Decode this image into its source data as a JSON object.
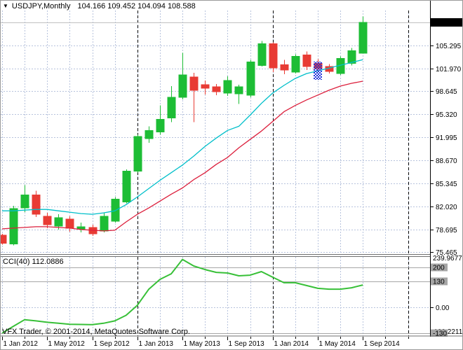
{
  "header": {
    "dropdown_icon": "▼",
    "symbol": "USDJPY,Monthly",
    "ohlc_text": "104.166 109.452 104.094 108.588"
  },
  "indicator": {
    "label_text": "CCI(40) 112.0886"
  },
  "footer": {
    "copyright": "VFX Trader, © 2001-2014, MetaQuotes Software Corp."
  },
  "colors": {
    "background": "#ffffff",
    "grid": "#b7c3dd",
    "year_line": "#000000",
    "bull": "#1dbd35",
    "bear": "#e83b34",
    "ma_fast": "#00bfca",
    "ma_slow": "#dc1f3c",
    "cci": "#38c038",
    "level_line": "#a6a6a6",
    "level_box_bg": "#a6a6a6",
    "level_box_fg": "#ffffff",
    "price_line": "#c0c0c0",
    "badge_bg": "#000000",
    "badge_fg": "#ffffff",
    "axis_border": "#000000",
    "separator": "#6f6f6f"
  },
  "price_axis": {
    "current": "108.588",
    "ticks": [
      105.295,
      101.97,
      98.645,
      95.32,
      91.995,
      88.67,
      85.345,
      82.02,
      78.695,
      75.465
    ]
  },
  "time_axis": {
    "labels": [
      {
        "m": 0,
        "text": "1 Jan 2012"
      },
      {
        "m": 4,
        "text": "1 May 2012"
      },
      {
        "m": 8,
        "text": "1 Sep 2012"
      },
      {
        "m": 12,
        "text": "1 Jan 2013"
      },
      {
        "m": 16,
        "text": "1 May 2013"
      },
      {
        "m": 20,
        "text": "1 Sep 2013"
      },
      {
        "m": 24,
        "text": "1 Jan 2014"
      },
      {
        "m": 28,
        "text": "1 May 2014"
      },
      {
        "m": 32,
        "text": "1 Sep 2014"
      }
    ]
  },
  "chart_data": {
    "type": "candlestick",
    "symbol": "USDJPY",
    "timeframe": "Monthly",
    "current_price": 108.588,
    "current_bar_ohlc": {
      "o": 104.166,
      "h": 109.452,
      "l": 104.094,
      "c": 108.588
    },
    "candles": [
      {
        "t": "Jan 2012",
        "o": 77.9,
        "h": 78.1,
        "l": 76.5,
        "c": 76.7
      },
      {
        "t": "Feb 2012",
        "o": 76.6,
        "h": 82.1,
        "l": 76.4,
        "c": 81.7
      },
      {
        "t": "Mar 2012",
        "o": 81.8,
        "h": 85.1,
        "l": 81.2,
        "c": 83.7
      },
      {
        "t": "Apr 2012",
        "o": 83.7,
        "h": 84.3,
        "l": 80.5,
        "c": 80.9
      },
      {
        "t": "May 2012",
        "o": 80.6,
        "h": 81.1,
        "l": 78.9,
        "c": 79.4
      },
      {
        "t": "Jun 2012",
        "o": 79.2,
        "h": 80.9,
        "l": 78.7,
        "c": 80.4
      },
      {
        "t": "Jul 2012",
        "o": 80.2,
        "h": 80.6,
        "l": 78.4,
        "c": 78.9
      },
      {
        "t": "Aug 2012",
        "o": 78.8,
        "h": 79.7,
        "l": 78.3,
        "c": 79.1
      },
      {
        "t": "Sep 2012",
        "o": 79.0,
        "h": 79.4,
        "l": 77.8,
        "c": 78.1
      },
      {
        "t": "Oct 2012",
        "o": 78.5,
        "h": 81.1,
        "l": 78.3,
        "c": 80.6
      },
      {
        "t": "Nov 2012",
        "o": 79.9,
        "h": 83.4,
        "l": 79.7,
        "c": 83.1
      },
      {
        "t": "Dec 2012",
        "o": 82.7,
        "h": 87.4,
        "l": 82.5,
        "c": 87.1
      },
      {
        "t": "Jan 2013",
        "o": 87.1,
        "h": 92.4,
        "l": 86.9,
        "c": 92.1
      },
      {
        "t": "Feb 2013",
        "o": 91.8,
        "h": 93.6,
        "l": 91.2,
        "c": 93.0
      },
      {
        "t": "Mar 2013",
        "o": 92.8,
        "h": 96.6,
        "l": 92.4,
        "c": 94.6
      },
      {
        "t": "Apr 2013",
        "o": 94.8,
        "h": 99.4,
        "l": 94.2,
        "c": 97.8
      },
      {
        "t": "May 2013",
        "o": 97.8,
        "h": 104.2,
        "l": 97.5,
        "c": 101.0
      },
      {
        "t": "Jun 2013",
        "o": 100.7,
        "h": 101.3,
        "l": 94.2,
        "c": 98.8
      },
      {
        "t": "Jul 2013",
        "o": 99.6,
        "h": 100.2,
        "l": 98.2,
        "c": 99.1
      },
      {
        "t": "Aug 2013",
        "o": 99.3,
        "h": 99.7,
        "l": 98.1,
        "c": 98.6
      },
      {
        "t": "Sep 2013",
        "o": 98.4,
        "h": 100.8,
        "l": 98.0,
        "c": 100.2
      },
      {
        "t": "Oct 2013",
        "o": 98.3,
        "h": 99.6,
        "l": 96.8,
        "c": 99.3
      },
      {
        "t": "Nov 2013",
        "o": 98.1,
        "h": 103.2,
        "l": 97.8,
        "c": 102.9
      },
      {
        "t": "Dec 2013",
        "o": 102.4,
        "h": 105.9,
        "l": 102.2,
        "c": 105.5
      },
      {
        "t": "Jan 2014",
        "o": 105.5,
        "h": 105.7,
        "l": 101.4,
        "c": 102.0
      },
      {
        "t": "Feb 2014",
        "o": 102.5,
        "h": 103.2,
        "l": 101.1,
        "c": 101.7
      },
      {
        "t": "Mar 2014",
        "o": 101.4,
        "h": 104.0,
        "l": 101.2,
        "c": 103.7
      },
      {
        "t": "Apr 2014",
        "o": 103.9,
        "h": 104.4,
        "l": 101.7,
        "c": 102.2
      },
      {
        "t": "May 2014",
        "o": 102.7,
        "h": 103.3,
        "l": 101.4,
        "c": 101.9
      },
      {
        "t": "Jun 2014",
        "o": 102.2,
        "h": 102.6,
        "l": 101.2,
        "c": 101.5
      },
      {
        "t": "Jul 2014",
        "o": 101.2,
        "h": 103.7,
        "l": 101.0,
        "c": 103.4
      },
      {
        "t": "Aug 2014",
        "o": 102.7,
        "h": 104.9,
        "l": 102.4,
        "c": 104.5
      },
      {
        "t": "Sep 2014",
        "o": 104.166,
        "h": 109.452,
        "l": 104.094,
        "c": 108.588
      }
    ],
    "series": [
      {
        "name": "ma_fast",
        "values": [
          81.4,
          81.4,
          81.5,
          81.6,
          81.6,
          81.4,
          81.2,
          81.0,
          80.9,
          81.1,
          81.4,
          82.3,
          83.4,
          84.6,
          85.8,
          86.9,
          88.0,
          89.3,
          90.7,
          91.9,
          93.0,
          93.6,
          95.2,
          96.9,
          98.4,
          99.5,
          100.5,
          101.2,
          101.6,
          102.0,
          102.4,
          102.8,
          103.2
        ]
      },
      {
        "name": "ma_slow",
        "values": [
          78.8,
          78.9,
          79.0,
          79.1,
          79.1,
          79.0,
          78.9,
          78.7,
          78.6,
          78.5,
          78.6,
          79.8,
          80.9,
          81.8,
          82.8,
          83.8,
          84.7,
          85.9,
          86.9,
          88.1,
          89.1,
          90.5,
          91.7,
          92.9,
          94.3,
          95.7,
          96.6,
          97.4,
          98.1,
          98.8,
          99.4,
          99.8,
          100.1
        ]
      }
    ],
    "indicator": {
      "name": "CCI",
      "period": 40,
      "current": 112.0886,
      "scale_max": 239.9677,
      "scale_min": -129.2211,
      "zero_label": "0.00",
      "levels": [
        200,
        130,
        -130
      ],
      "values": [
        -129.2211,
        -95,
        -62,
        -68,
        -75,
        -80,
        -85,
        -86,
        -87,
        -80,
        -68,
        -40,
        10,
        90,
        140,
        168,
        239.9677,
        207,
        189,
        175,
        172,
        158,
        161,
        179,
        151,
        123,
        123,
        109,
        95,
        91,
        91,
        98,
        112.0886
      ]
    },
    "chart_object": {
      "name": "blue-checkered-marker",
      "color": "#2233dd"
    }
  }
}
